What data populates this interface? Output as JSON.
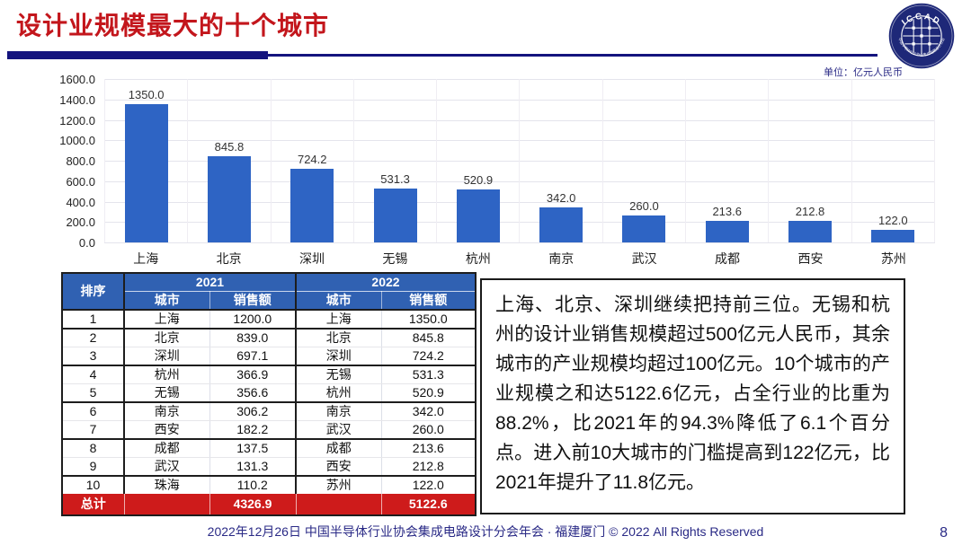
{
  "slide": {
    "title": "设计业规模最大的十个城市",
    "unit_label": "单位：亿元人民币",
    "footer": "2022年12月26日 中国半导体行业协会集成电路设计分会年会 · 福建厦门 © 2022 All Rights Reserved",
    "page_number": "8",
    "logo_text": "ICCAD",
    "logo_subtext": "中国半导体行业协会集成电路设计分会"
  },
  "chart_data": {
    "type": "bar",
    "title": "",
    "xlabel": "",
    "ylabel": "",
    "unit": "亿元人民币",
    "categories": [
      "上海",
      "北京",
      "深圳",
      "无锡",
      "杭州",
      "南京",
      "武汉",
      "成都",
      "西安",
      "苏州"
    ],
    "values": [
      1350.0,
      845.8,
      724.2,
      531.3,
      520.9,
      342.0,
      260.0,
      213.6,
      212.8,
      122.0
    ],
    "value_labels": [
      "1350.0",
      "845.8",
      "724.2",
      "531.3",
      "520.9",
      "342.0",
      "260.0",
      "213.6",
      "212.8",
      "122.0"
    ],
    "ylim": [
      0,
      1600
    ],
    "ytick_step": 200,
    "yticks": [
      "1600.0",
      "1400.0",
      "1200.0",
      "1000.0",
      "800.0",
      "600.0",
      "400.0",
      "200.0",
      "0.0"
    ],
    "grid": true,
    "legend": null,
    "bar_color": "#2e64c4"
  },
  "table": {
    "header": {
      "rank": "排序",
      "year1": "2021",
      "year2": "2022",
      "city": "城市",
      "sales": "销售额"
    },
    "rows": [
      {
        "rank": "1",
        "city1": "上海",
        "sales1": "1200.0",
        "city2": "上海",
        "sales2": "1350.0"
      },
      {
        "rank": "2",
        "city1": "北京",
        "sales1": "839.0",
        "city2": "北京",
        "sales2": "845.8"
      },
      {
        "rank": "3",
        "city1": "深圳",
        "sales1": "697.1",
        "city2": "深圳",
        "sales2": "724.2"
      },
      {
        "rank": "4",
        "city1": "杭州",
        "sales1": "366.9",
        "city2": "无锡",
        "sales2": "531.3"
      },
      {
        "rank": "5",
        "city1": "无锡",
        "sales1": "356.6",
        "city2": "杭州",
        "sales2": "520.9"
      },
      {
        "rank": "6",
        "city1": "南京",
        "sales1": "306.2",
        "city2": "南京",
        "sales2": "342.0"
      },
      {
        "rank": "7",
        "city1": "西安",
        "sales1": "182.2",
        "city2": "武汉",
        "sales2": "260.0"
      },
      {
        "rank": "8",
        "city1": "成都",
        "sales1": "137.5",
        "city2": "成都",
        "sales2": "213.6"
      },
      {
        "rank": "9",
        "city1": "武汉",
        "sales1": "131.3",
        "city2": "西安",
        "sales2": "212.8"
      },
      {
        "rank": "10",
        "city1": "珠海",
        "sales1": "110.2",
        "city2": "苏州",
        "sales2": "122.0"
      }
    ],
    "total": {
      "label": "总计",
      "sales1": "4326.9",
      "sales2": "5122.6"
    }
  },
  "commentary": "上海、北京、深圳继续把持前三位。无锡和杭州的设计业销售规模超过500亿元人民币，其余城市的产业规模均超过100亿元。10个城市的产业规模之和达5122.6亿元，占全行业的比重为88.2%，比2021年的94.3%降低了6.1个百分点。进入前10大城市的门槛提高到122亿元，比2021年提升了11.8亿元。",
  "colors": {
    "title_red": "#c3161c",
    "bar_blue": "#2e64c4",
    "table_header_blue": "#3061b2",
    "total_row_red": "#ce1b1b",
    "footer_navy": "#2a2a86",
    "header_rule_navy": "#14147e"
  }
}
